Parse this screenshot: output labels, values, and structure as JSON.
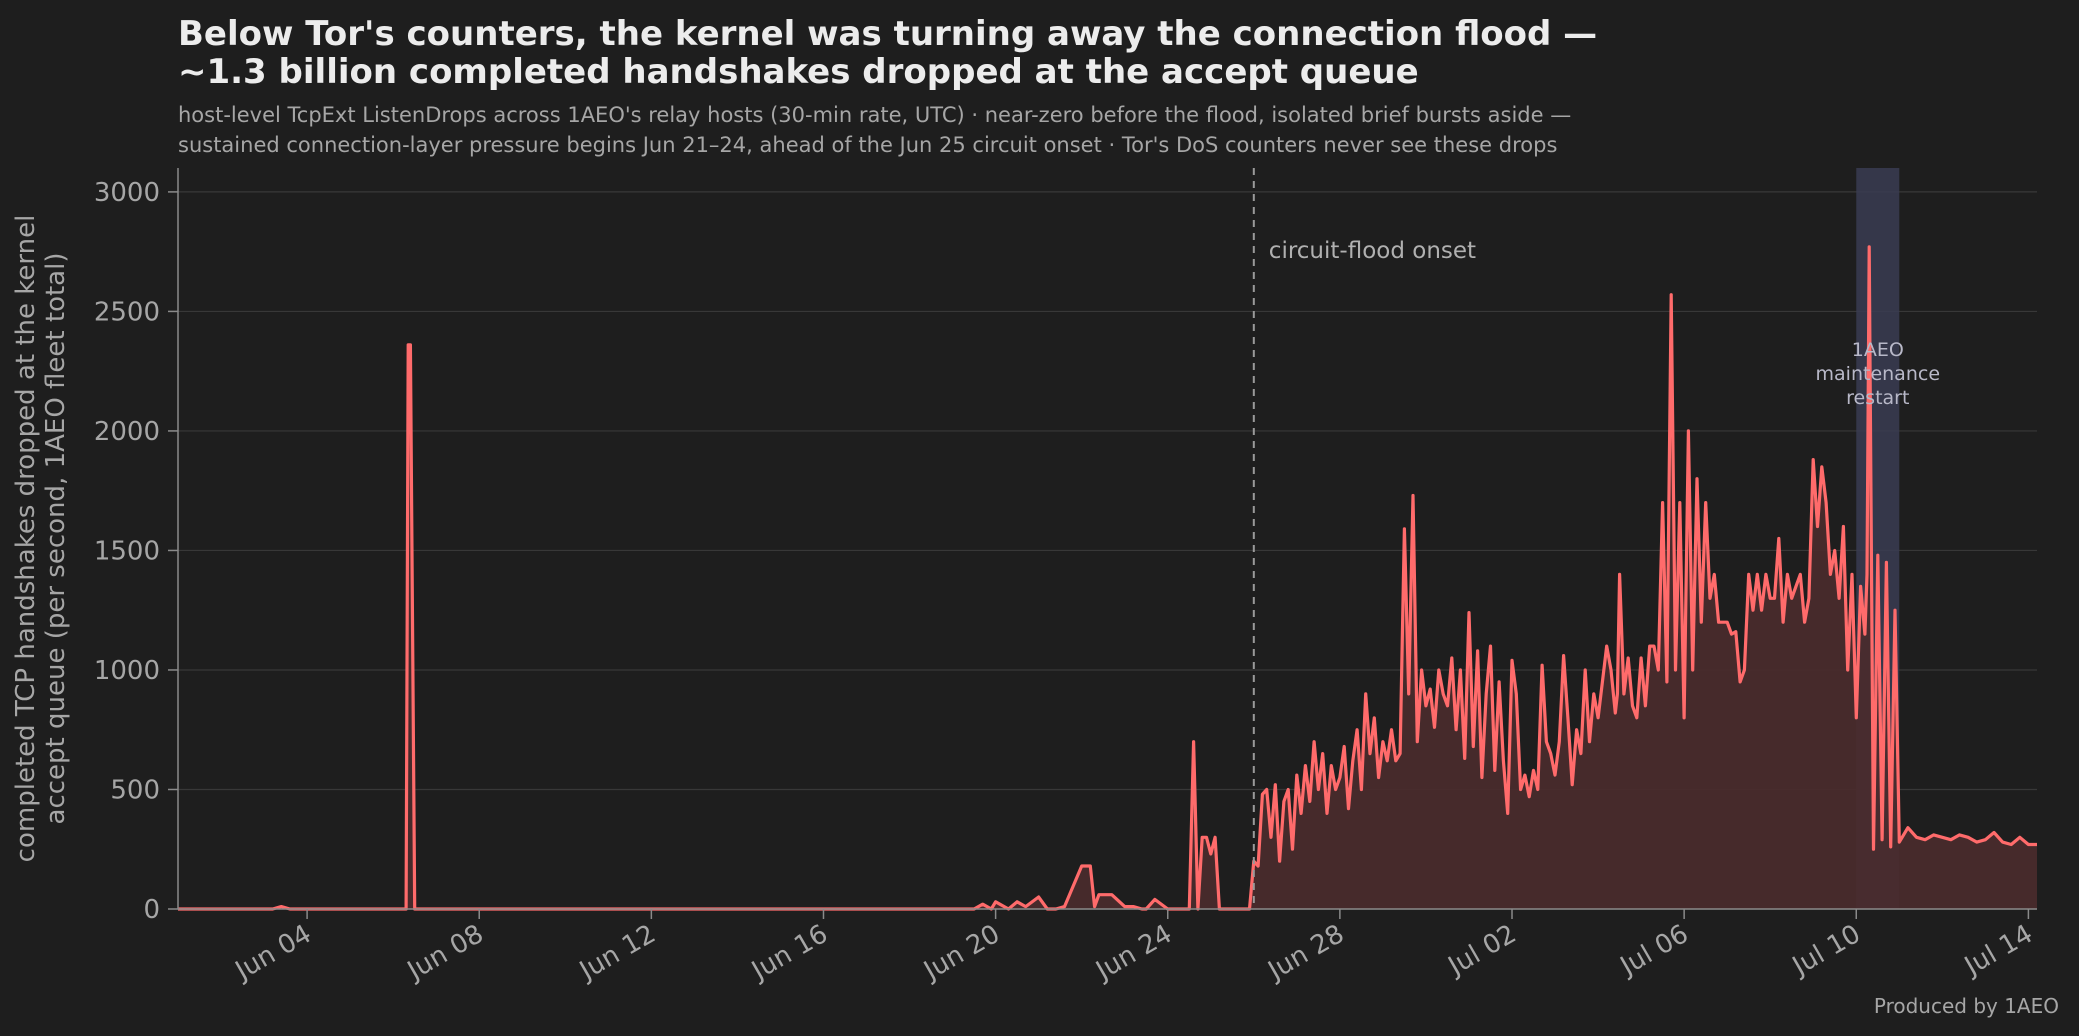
{
  "chart_data": {
    "type": "line",
    "title": [
      "Below Tor's counters, the kernel was turning away the connection flood —",
      "~1.3 billion completed handshakes dropped at the accept queue"
    ],
    "subtitle": [
      "host-level TcpExt ListenDrops across 1AEO's relay hosts (30-min rate, UTC) · near-zero before the flood, isolated brief bursts aside —",
      "sustained connection-layer pressure begins Jun 21–24, ahead of the Jun 25 circuit onset · Tor's DoS counters never see these drops"
    ],
    "ylabel": [
      "completed TCP handshakes dropped at the kernel",
      "accept queue  (per second, 1AEO fleet total)"
    ],
    "xlabel": "",
    "ylim": [
      0,
      3100
    ],
    "yticks": [
      0,
      500,
      1000,
      1500,
      2000,
      2500,
      3000
    ],
    "ytick_labels": [
      "0",
      "500",
      "1000",
      "1500",
      "2000",
      "2500",
      "3000"
    ],
    "xlim_day": [
      0,
      43.2
    ],
    "xtick_days": [
      3,
      7,
      11,
      15,
      19,
      23,
      27,
      31,
      35,
      39,
      43
    ],
    "xtick_labels": [
      "Jun 04",
      "Jun 08",
      "Jun 12",
      "Jun 16",
      "Jun 20",
      "Jun 24",
      "Jun 28",
      "Jul 02",
      "Jul 06",
      "Jul 10",
      "Jul 14"
    ],
    "grid": "horizontal",
    "onset": {
      "day": 25.0,
      "label": "circuit-flood onset"
    },
    "maintenance": {
      "start_day": 39.0,
      "end_day": 40.0,
      "label": [
        "1AEO",
        "maintenance",
        "restart"
      ]
    },
    "series": [
      {
        "color": "#ff6b6b",
        "fill": "#4a2b2c",
        "x_day": [
          0.0,
          2.2,
          2.4,
          2.6,
          5.3,
          5.35,
          5.4,
          5.5,
          5.6,
          10.0,
          18.0,
          18.5,
          18.7,
          18.9,
          19.0,
          19.3,
          19.5,
          19.7,
          20.0,
          20.2,
          20.4,
          20.6,
          21.0,
          21.2,
          21.3,
          21.4,
          21.5,
          21.7,
          22.0,
          22.2,
          22.4,
          22.5,
          22.7,
          23.0,
          23.3,
          23.5,
          23.6,
          23.7,
          23.8,
          23.9,
          24.0,
          24.1,
          24.2,
          24.3,
          24.5,
          24.7,
          24.9,
          25.0,
          25.1,
          25.2,
          25.3,
          25.4,
          25.5,
          25.6,
          25.7,
          25.8,
          25.9,
          26.0,
          26.1,
          26.2,
          26.3,
          26.4,
          26.5,
          26.6,
          26.7,
          26.8,
          26.9,
          27.0,
          27.1,
          27.2,
          27.3,
          27.4,
          27.5,
          27.6,
          27.7,
          27.8,
          27.9,
          28.0,
          28.1,
          28.2,
          28.3,
          28.4,
          28.5,
          28.6,
          28.7,
          28.8,
          28.9,
          29.0,
          29.1,
          29.2,
          29.3,
          29.4,
          29.5,
          29.6,
          29.7,
          29.8,
          29.9,
          30.0,
          30.1,
          30.2,
          30.3,
          30.4,
          30.5,
          30.6,
          30.7,
          30.8,
          30.9,
          31.0,
          31.1,
          31.2,
          31.3,
          31.4,
          31.5,
          31.6,
          31.7,
          31.8,
          31.9,
          32.0,
          32.1,
          32.2,
          32.3,
          32.4,
          32.5,
          32.6,
          32.7,
          32.8,
          32.9,
          33.0,
          33.1,
          33.2,
          33.3,
          33.4,
          33.45,
          33.5,
          33.6,
          33.7,
          33.8,
          33.9,
          34.0,
          34.1,
          34.2,
          34.3,
          34.4,
          34.5,
          34.6,
          34.7,
          34.8,
          34.9,
          35.0,
          35.1,
          35.2,
          35.3,
          35.4,
          35.5,
          35.6,
          35.7,
          35.8,
          35.9,
          36.0,
          36.1,
          36.2,
          36.3,
          36.4,
          36.5,
          36.6,
          36.7,
          36.8,
          36.9,
          37.0,
          37.1,
          37.2,
          37.3,
          37.4,
          37.5,
          37.6,
          37.7,
          37.8,
          37.9,
          38.0,
          38.1,
          38.2,
          38.3,
          38.4,
          38.5,
          38.6,
          38.7,
          38.8,
          38.9,
          39.0,
          39.1,
          39.2,
          39.25,
          39.3,
          39.4,
          39.5,
          39.6,
          39.7,
          39.8,
          39.9,
          40.0,
          40.2,
          40.4,
          40.6,
          40.8,
          41.0,
          41.2,
          41.4,
          41.6,
          41.8,
          42.0,
          42.2,
          42.4,
          42.6,
          42.8,
          43.0,
          43.2
        ],
        "y": [
          0,
          0,
          10,
          0,
          0,
          2360,
          2360,
          0,
          0,
          0,
          0,
          0,
          20,
          0,
          30,
          0,
          30,
          10,
          50,
          0,
          0,
          10,
          180,
          180,
          10,
          60,
          60,
          60,
          10,
          10,
          0,
          0,
          40,
          0,
          0,
          0,
          700,
          0,
          300,
          300,
          230,
          300,
          0,
          0,
          0,
          0,
          0,
          200,
          180,
          480,
          500,
          300,
          520,
          200,
          450,
          500,
          250,
          560,
          400,
          600,
          450,
          700,
          500,
          650,
          400,
          600,
          500,
          550,
          680,
          420,
          620,
          750,
          500,
          900,
          650,
          800,
          550,
          700,
          620,
          750,
          620,
          650,
          1590,
          900,
          1730,
          700,
          1000,
          850,
          920,
          760,
          1000,
          900,
          850,
          1050,
          750,
          1000,
          630,
          1240,
          680,
          1080,
          550,
          900,
          1100,
          580,
          950,
          620,
          400,
          1040,
          900,
          500,
          560,
          470,
          580,
          500,
          1020,
          700,
          650,
          560,
          700,
          1060,
          800,
          520,
          750,
          650,
          1000,
          700,
          900,
          800,
          950,
          1100,
          1000,
          820,
          900,
          1400,
          900,
          1050,
          850,
          800,
          1050,
          850,
          1100,
          1100,
          1000,
          1700,
          950,
          2570,
          1000,
          1700,
          800,
          2000,
          1000,
          1800,
          1200,
          1700,
          1300,
          1400,
          1200,
          1200,
          1200,
          1150,
          1160,
          950,
          1000,
          1400,
          1250,
          1400,
          1250,
          1400,
          1300,
          1300,
          1550,
          1200,
          1400,
          1300,
          1350,
          1400,
          1200,
          1300,
          1880,
          1600,
          1850,
          1700,
          1400,
          1500,
          1300,
          1600,
          1000,
          1400,
          800,
          1350,
          1150,
          1400,
          2770,
          250,
          1480,
          290,
          1450,
          260,
          1250,
          280,
          340,
          300,
          290,
          310,
          300,
          290,
          310,
          300,
          280,
          290,
          320,
          280,
          270,
          300,
          270,
          270
        ]
      }
    ],
    "credit": "Produced by 1AEO"
  }
}
